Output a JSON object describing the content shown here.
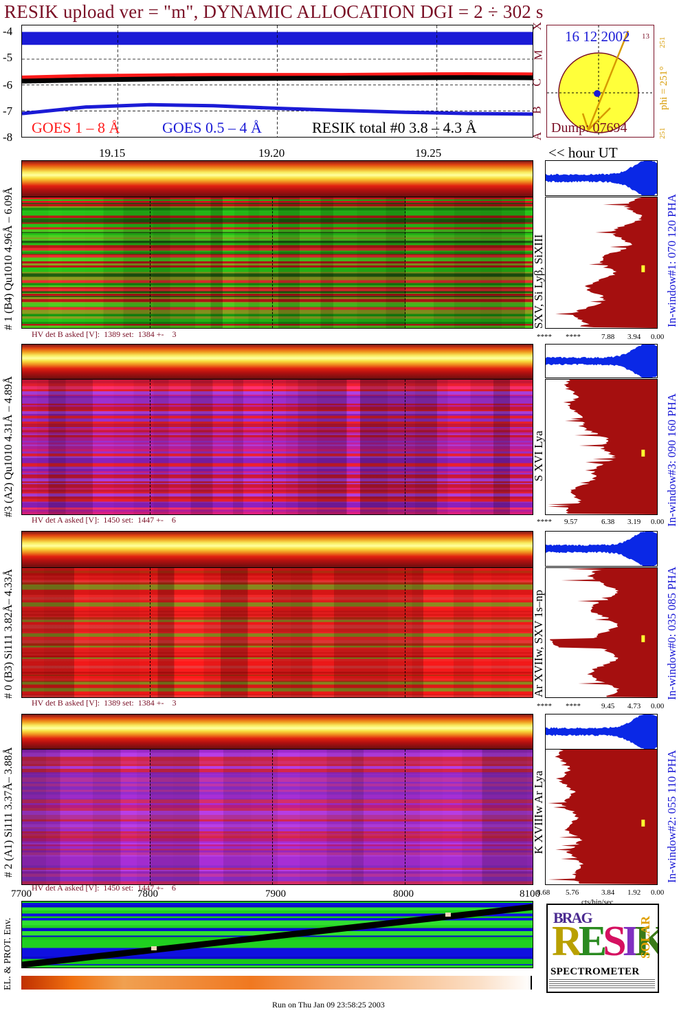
{
  "title": "RESIK upload ver = \"m\", DYNAMIC ALLOCATION  DGI =   2 ÷ 302 s",
  "colors": {
    "goes_long": "#ff1a1a",
    "goes_short": "#1b1bd6",
    "resik_total": "#000000",
    "maroon": "#7a1026",
    "spectrum_fill": "#a50f0f",
    "pha_fill": "#0a28e6"
  },
  "goes_panel": {
    "y_ticks": [
      "-4",
      "-5",
      "-6",
      "-7",
      "-8"
    ],
    "class_letters": [
      "X",
      "M",
      "C",
      "B",
      "A"
    ],
    "legend_goes_long": "GOES 1 – 8 Å",
    "legend_goes_short": "GOES 0.5 – 4 Å",
    "legend_resik": "RESIK total #0  3.8 – 4.3 Å"
  },
  "time_axis": {
    "ticks": [
      "19.15",
      "19.20",
      "19.25"
    ],
    "unit_label": "<< hour UT"
  },
  "sun_panel": {
    "date": "16 12 2002",
    "pole_angle": "13",
    "phi_label": "phi = 251°",
    "phi_value": "251",
    "phi_small": "251",
    "dump": "Dump: 07694"
  },
  "channels": [
    {
      "label": "# 1 (B4) Qu1010 4.96Å – 6.09Å",
      "lines": "SXV, Si Lyβ, SiXIII",
      "hv": "HV det B asked [V]:  1389 set:  1384 +-    3",
      "pha": "In-window#1:  070 120 PHA",
      "xticks": [
        "****",
        "****",
        "7.88",
        "3.94",
        "0.00"
      ]
    },
    {
      "label": "#3 (A2) Qu1010  4.31Å – 4.89Å",
      "lines": "S XVI Lya",
      "hv": "HV det A asked [V]:  1450 set:  1447 +-    6",
      "pha": "In-window#3:  090 160 PHA",
      "xticks": [
        "****",
        "9.57",
        "6.38",
        "3.19",
        "0.00"
      ]
    },
    {
      "label": "# 0 (B3) Si111  3.82Å– 4.33Å",
      "lines": "Ar XVIIw,  SXV 1s–np",
      "hv": "HV det B asked [V]:  1389 set:  1384 +-    3",
      "pha": "In-window#0:  035 085 PHA",
      "xticks": [
        "****",
        "****",
        "9.45",
        "4.73",
        "0.00"
      ]
    },
    {
      "label": "# 2 (A1) Si111  3.37Å– 3.88Å",
      "lines": "K XVIIIw  Ar Lya",
      "hv": "HV det A asked [V]:  1450 set:  1447 +-    6",
      "pha": "In-window#2:  055 110 PHA",
      "xticks": [
        "8.68",
        "5.76",
        "3.84",
        "1.92",
        "0.00"
      ]
    }
  ],
  "spectrum_xlabel": "cts/bin/sec",
  "orbit_panel": {
    "xticks": [
      "7700",
      "7800",
      "7900",
      "8000",
      "8100"
    ],
    "ylabel": "EL. & PROT. Env."
  },
  "logo": {
    "letters_top": "BRAG",
    "main": "RESIK",
    "side": "SOLAR",
    "bottom": "SPECTROMETER"
  },
  "footer": "Run on Thu Jan 09 23:58:25 2003",
  "chart_data": {
    "type": "line",
    "title": "RESIK upload ver = \"m\", DYNAMIC ALLOCATION  DGI =   2 ÷ 302 s",
    "xlabel": "<< hour UT",
    "ylabel": "",
    "xlim": [
      19.12,
      19.28
    ],
    "ylim": [
      -8,
      -3.7
    ],
    "x_ticks": [
      19.15,
      19.2,
      19.25
    ],
    "y_ticks": [
      -4,
      -5,
      -6,
      -7,
      -8
    ],
    "grid": true,
    "legend": "bottom",
    "series": [
      {
        "name": "GOES 1 – 8 Å",
        "color": "#ff1a1a",
        "x": [
          19.12,
          19.14,
          19.16,
          19.18,
          19.2,
          19.22,
          19.24,
          19.26,
          19.28
        ],
        "values": [
          -5.7,
          -5.64,
          -5.62,
          -5.6,
          -5.6,
          -5.6,
          -5.58,
          -5.57,
          -5.58
        ]
      },
      {
        "name": "GOES 0.5 – 4 Å",
        "color": "#1b1bd6",
        "x": [
          19.12,
          19.14,
          19.16,
          19.18,
          19.2,
          19.22,
          19.24,
          19.26,
          19.28
        ],
        "values": [
          -7.1,
          -6.85,
          -6.76,
          -6.8,
          -6.9,
          -6.98,
          -7.05,
          -7.1,
          -7.12
        ]
      },
      {
        "name": "RESIK total #0  3.8 – 4.3 Å",
        "color": "#000000",
        "x": [
          19.12,
          19.14,
          19.16,
          19.18,
          19.2,
          19.22,
          19.24,
          19.26,
          19.28
        ],
        "values": [
          -5.85,
          -5.8,
          -5.77,
          -5.75,
          -5.74,
          -5.73,
          -5.72,
          -5.71,
          -5.72
        ]
      }
    ],
    "class_band_X_level": -4.2
  }
}
